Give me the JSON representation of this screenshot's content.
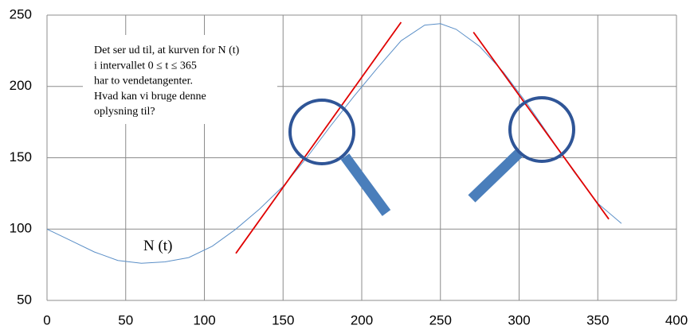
{
  "chart_data": {
    "type": "line",
    "annotation": [
      "Det ser ud til, at kurven for N (t)",
      "i intervallet  0 ≤ t ≤ 365",
      "har to vendetangenter.",
      "Hvad kan vi bruge denne",
      "oplysning til?"
    ],
    "series": [
      {
        "name": "N (t)",
        "color": "#5b8fc7",
        "x": [
          0,
          15,
          30,
          45,
          60,
          75,
          90,
          105,
          120,
          135,
          150,
          165,
          180,
          195,
          210,
          225,
          240,
          250,
          260,
          275,
          290,
          305,
          320,
          335,
          350,
          365
        ],
        "values": [
          100,
          92,
          84,
          78,
          76,
          77,
          80,
          88,
          100,
          114,
          130,
          150,
          172,
          193,
          213,
          232,
          243,
          244,
          240,
          228,
          210,
          188,
          164,
          140,
          118,
          104
        ]
      },
      {
        "color": "#e00000",
        "x": [
          120,
          225
        ],
        "values": [
          83,
          245
        ]
      },
      {
        "color": "#e00000",
        "x": [
          271,
          357
        ],
        "values": [
          238,
          107
        ]
      }
    ],
    "xlim": [
      0,
      400
    ],
    "xticks": [
      0,
      50,
      100,
      150,
      200,
      250,
      300,
      350,
      400
    ],
    "ylim": [
      50,
      250
    ],
    "yticks": [
      50,
      100,
      150,
      200,
      250
    ],
    "grid": true
  }
}
